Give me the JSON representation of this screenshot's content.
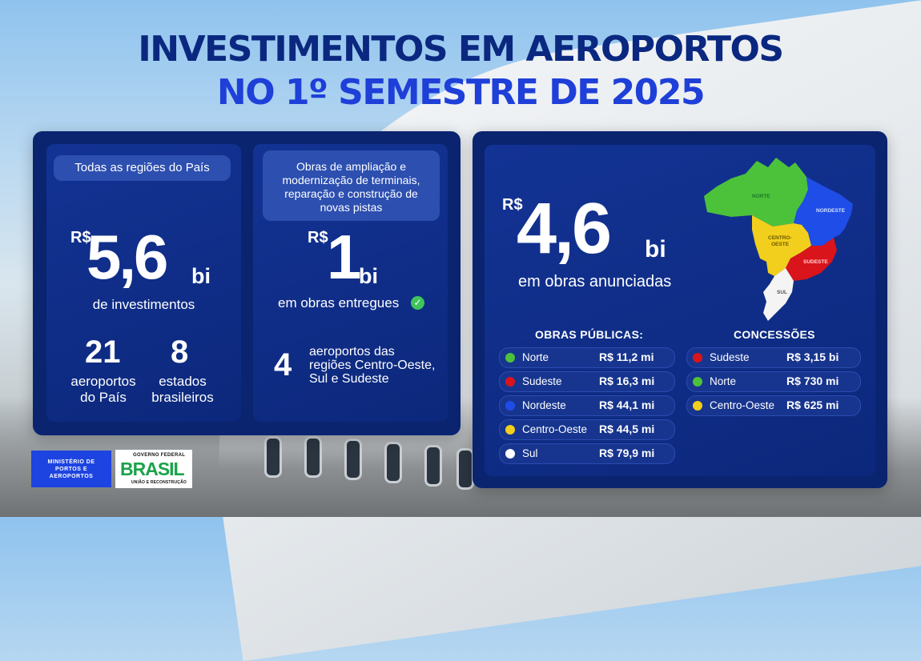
{
  "title": {
    "line1": "INVESTIMENTOS EM AEROPORTOS",
    "line2": "NO 1º SEMESTRE DE 2025"
  },
  "card_left": {
    "pill": "Todas as regiões do País",
    "currency": "R$",
    "value": "5,6",
    "unit": "bi",
    "caption": "de investimentos",
    "stat1_number": "21",
    "stat1_label_l1": "aeroportos",
    "stat1_label_l2": "do País",
    "stat2_number": "8",
    "stat2_label_l1": "estados",
    "stat2_label_l2": "brasileiros"
  },
  "card_middle": {
    "pill_l1": "Obras de ampliação e",
    "pill_l2": "modernização de terminais,",
    "pill_l3": "reparação e construção de",
    "pill_l4": "novas pistas",
    "currency": "R$",
    "value": "1",
    "unit": "bi",
    "caption": "em obras entregues",
    "stat_number": "4",
    "stat_label_l1": "aeroportos das",
    "stat_label_l2": "regiões Centro-Oeste,",
    "stat_label_l3": "Sul e Sudeste"
  },
  "card_right": {
    "currency": "R$",
    "value": "4,6",
    "unit": "bi",
    "caption": "em obras anunciadas",
    "map_labels": {
      "norte": "NORTE",
      "nordeste": "NORDESTE",
      "centro_oeste_l1": "CENTRO-",
      "centro_oeste_l2": "OESTE",
      "sudeste": "SUDESTE",
      "sul": "SUL"
    },
    "publicas_title": "OBRAS PÚBLICAS:",
    "publicas": [
      {
        "label": "Norte",
        "value": "R$ 11,2 mi",
        "color": "#4cc23a"
      },
      {
        "label": "Sudeste",
        "value": "R$ 16,3 mi",
        "color": "#d9141b"
      },
      {
        "label": "Nordeste",
        "value": "R$ 44,1 mi",
        "color": "#1f4de8"
      },
      {
        "label": "Centro-Oeste",
        "value": "R$ 44,5 mi",
        "color": "#f2cf1d"
      },
      {
        "label": "Sul",
        "value": "R$ 79,9 mi",
        "color": "#ffffff"
      }
    ],
    "concessoes_title": "CONCESSÕES",
    "concessoes": [
      {
        "label": "Sudeste",
        "value": "R$ 3,15 bi",
        "color": "#d9141b"
      },
      {
        "label": "Norte",
        "value": "R$ 730 mi",
        "color": "#4cc23a"
      },
      {
        "label": "Centro-Oeste",
        "value": "R$ 625 mi",
        "color": "#f2cf1d"
      }
    ]
  },
  "logos": {
    "ministerio_l1": "MINISTÉRIO DE",
    "ministerio_l2": "PORTOS E",
    "ministerio_l3": "AEROPORTOS",
    "gov_top": "GOVERNO FEDERAL",
    "gov_brasil": "BRASIL",
    "gov_bottom": "UNIÃO E RECONSTRUÇÃO"
  },
  "colors": {
    "title_dark": "#0b2880",
    "title_blue": "#1e3fd8",
    "panel": "#0a2470",
    "norte": "#4cc23a",
    "nordeste": "#1f4de8",
    "centro_oeste": "#f2cf1d",
    "sudeste": "#d9141b",
    "sul": "#ffffff"
  }
}
